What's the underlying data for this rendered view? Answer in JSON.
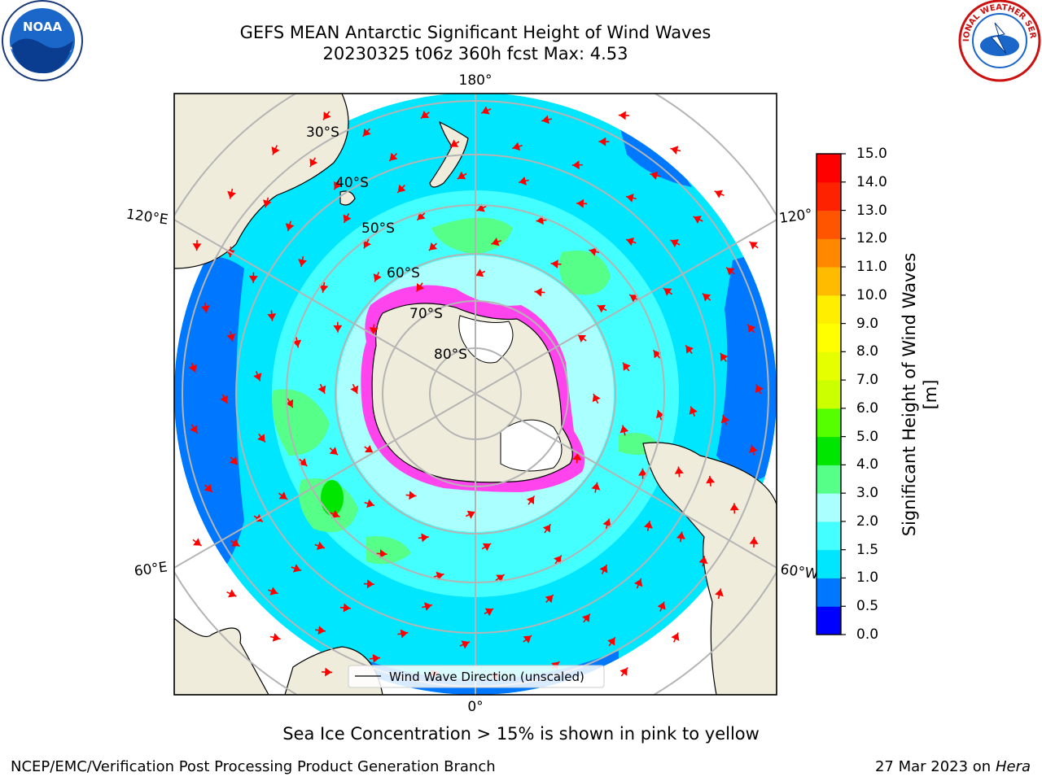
{
  "title": {
    "line1": "GEFS MEAN Antarctic Significant Height of Wind Waves",
    "line2": "20230325 t06z 360h fcst   Max: 4.53"
  },
  "map": {
    "projection": "south-polar-stereographic",
    "longitude_labels": {
      "top": "180°",
      "bottom": "0°",
      "left_upper": "120°E",
      "left_lower": "60°E",
      "right_upper": "120°",
      "right_lower": "60°W"
    },
    "latitude_labels": [
      "30°S",
      "40°S",
      "50°S",
      "60°S",
      "70°S",
      "80°S"
    ],
    "legend_label": "Wind Wave Direction (unscaled)",
    "colors": {
      "land": "#efecdc",
      "ice": "#ff44ee",
      "arrow": "#ff0000",
      "grid": "#b4b4b4"
    }
  },
  "colorbar": {
    "label": "Significant Height of Wind Waves [m]",
    "ticks": [
      "0.0",
      "0.5",
      "1.0",
      "1.5",
      "2.0",
      "3.0",
      "4.0",
      "5.0",
      "6.0",
      "7.0",
      "8.0",
      "9.0",
      "10.0",
      "11.0",
      "12.0",
      "13.0",
      "14.0",
      "15.0"
    ],
    "colors": [
      "#0000ff",
      "#0077ff",
      "#00e6ff",
      "#44ffff",
      "#aaffff",
      "#55ff88",
      "#00e600",
      "#55ff00",
      "#ccff00",
      "#e6ff00",
      "#ffff00",
      "#ffee00",
      "#ffbb00",
      "#ff8800",
      "#ff5500",
      "#ff2200",
      "#ff0000"
    ]
  },
  "footer": {
    "sea_ice_note": "Sea Ice Concentration > 15% is shown in pink to yellow",
    "credit": "NCEP/EMC/Verification Post Processing Product Generation Branch",
    "date_prefix": "27 Mar 2023 on",
    "host": "Hera"
  },
  "logos": {
    "left": "NOAA",
    "right": "NATIONAL WEATHER SERVICE"
  }
}
